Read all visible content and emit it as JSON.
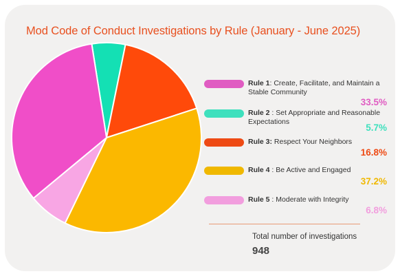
{
  "chart_data": {
    "type": "pie",
    "title": "Mod Code of Conduct Investigations by Rule (January - June 2025)",
    "slices": [
      {
        "rule": "Rule 1",
        "sep": ": ",
        "desc": "Create, Facilitate, and Maintain a Stable Community",
        "value": 33.5,
        "value_label": "33.5%",
        "color": "#f04ec8",
        "legend_color": "#e05cc2"
      },
      {
        "rule": "Rule 2",
        "sep": " : ",
        "desc": "Set Appropriate and Reasonable Expectations",
        "value": 5.7,
        "value_label": "5.7%",
        "color": "#14e0b4",
        "legend_color": "#3ee0bd"
      },
      {
        "rule": "Rule 3:",
        "sep": " ",
        "desc": "Respect Your Neighbors",
        "value": 16.8,
        "value_label": "16.8%",
        "color": "#ff4a0a",
        "legend_color": "#ee4a14"
      },
      {
        "rule": "Rule 4",
        "sep": " : ",
        "desc": "Be Active and Engaged",
        "value": 37.2,
        "value_label": "37.2%",
        "color": "#fbb800",
        "legend_color": "#f0b800"
      },
      {
        "rule": "Rule 5",
        "sep": " : ",
        "desc": "Moderate with Integrity",
        "value": 6.8,
        "value_label": "6.8%",
        "color": "#f8a6e4",
        "legend_color": "#f29ede"
      }
    ],
    "total_label": "Total number of investigations",
    "total_value": "948"
  }
}
